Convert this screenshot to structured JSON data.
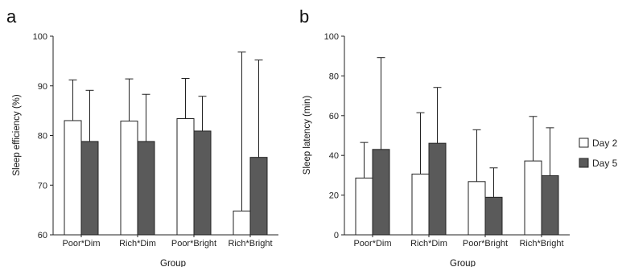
{
  "chart_data": [
    {
      "type": "bar",
      "panel_label": "a",
      "categories": [
        "Poor*Dim",
        "Rich*Dim",
        "Poor*Bright",
        "Rich*Bright"
      ],
      "xlabel": "Group",
      "ylabel": "Sleep efficiency (%)",
      "ylim": [
        60,
        100
      ],
      "yticks": [
        "60",
        "70",
        "80",
        "90",
        "100"
      ],
      "grid": false,
      "series": [
        {
          "name": "Day 2",
          "values": [
            83.0,
            82.9,
            83.4,
            64.8
          ],
          "error_upper": [
            91.2,
            91.4,
            91.5,
            96.8
          ],
          "color": "#ffffff"
        },
        {
          "name": "Day 5",
          "values": [
            78.8,
            78.8,
            80.9,
            75.6
          ],
          "error_upper": [
            89.1,
            88.3,
            87.9,
            95.2
          ],
          "color": "#5a5a5a"
        }
      ]
    },
    {
      "type": "bar",
      "panel_label": "b",
      "categories": [
        "Poor*Dim",
        "Rich*Dim",
        "Poor*Bright",
        "Rich*Bright"
      ],
      "xlabel": "Group",
      "ylabel": "Sleep latency (min)",
      "ylim": [
        0,
        100
      ],
      "yticks": [
        "0",
        "20",
        "40",
        "60",
        "80",
        "100"
      ],
      "grid": false,
      "series": [
        {
          "name": "Day 2",
          "values": [
            28.6,
            30.6,
            26.8,
            37.2
          ],
          "error_upper": [
            46.5,
            61.5,
            52.9,
            59.6
          ],
          "color": "#ffffff"
        },
        {
          "name": "Day 5",
          "values": [
            43.0,
            46.1,
            18.9,
            29.8
          ],
          "error_upper": [
            89.2,
            74.2,
            33.7,
            53.9
          ],
          "color": "#5a5a5a"
        }
      ]
    }
  ],
  "legend": {
    "position": "right",
    "items": [
      {
        "label": "Day 2",
        "color": "#ffffff"
      },
      {
        "label": "Day 5",
        "color": "#5a5a5a"
      }
    ]
  }
}
